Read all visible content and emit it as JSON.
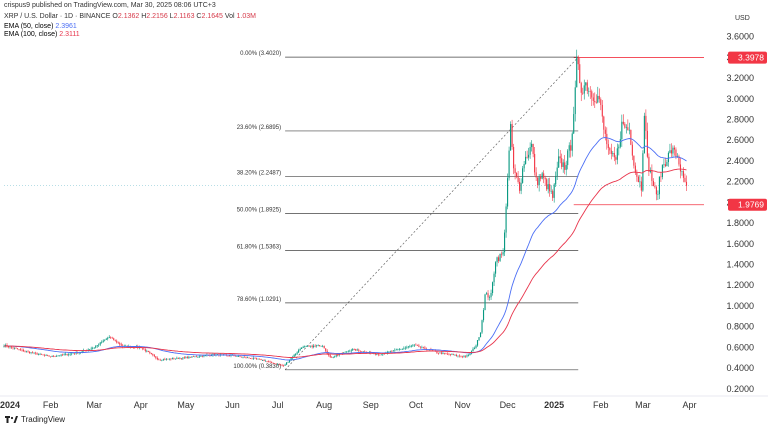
{
  "publisher_line": "crispus9 published on TradingView.com, Mar 30, 2025 08:06 UTC+3",
  "symbol": {
    "title": "XRP / U.S. Dollar · 1D · BINANCE",
    "ohlc": {
      "o_label": "O",
      "o": "2.1362",
      "h_label": "H",
      "h": "2.2156",
      "l_label": "L",
      "l": "2.1163",
      "c_label": "C",
      "c": "2.1645"
    },
    "vol_label": "Vol",
    "vol": "1.03M"
  },
  "indicators": [
    {
      "label": "EMA (50, close)",
      "value": "2.3961",
      "color": "#4c6ff5"
    },
    {
      "label": "EMA (100, close)",
      "value": "2.3111",
      "color": "#e8354c"
    }
  ],
  "currency": "USD",
  "price_tags": [
    {
      "value": "3.3978",
      "color": "#f23645"
    },
    {
      "value": "1.9769",
      "color": "#f23645"
    }
  ],
  "footer": {
    "brand": "TradingView"
  },
  "chart_data": {
    "type": "candlestick",
    "y_ticks": [
      0.2,
      0.4,
      0.6,
      0.8,
      1.0,
      1.2,
      1.4,
      1.6,
      1.8,
      2.0,
      2.2,
      2.4,
      2.6,
      2.8,
      3.0,
      3.2,
      3.4,
      3.6
    ],
    "y_tick_labels": [
      "0.2000",
      "0.4000",
      "0.6000",
      "0.8000",
      "1.0000",
      "1.2000",
      "1.4000",
      "1.6000",
      "1.8000",
      "2.0000",
      "2.2000",
      "2.4000",
      "2.6000",
      "2.8000",
      "3.0000",
      "3.2000",
      "3.4000",
      "3.6000"
    ],
    "x_labels": [
      "2024",
      "Feb",
      "Mar",
      "Apr",
      "May",
      "Jun",
      "Jul",
      "Aug",
      "Sep",
      "Oct",
      "Nov",
      "Dec",
      "2025",
      "Feb",
      "Mar",
      "Apr"
    ],
    "ylim": [
      0.13,
      3.78
    ],
    "grid": false,
    "fib_levels": [
      {
        "label": "0.00% (3.4020)",
        "price": 3.402
      },
      {
        "label": "23.60% (2.6895)",
        "price": 2.6895
      },
      {
        "label": "38.20% (2.2487)",
        "price": 2.2487
      },
      {
        "label": "50.00% (1.8925)",
        "price": 1.8925
      },
      {
        "label": "61.80% (1.5363)",
        "price": 1.5363
      },
      {
        "label": "78.60% (1.0291)",
        "price": 1.0291
      },
      {
        "label": "100.00% (0.3830)",
        "price": 0.383
      }
    ],
    "fib_range_dates": [
      "2024-07-06",
      "2025-01-17"
    ],
    "horizontal_lines": [
      3.3978,
      1.9769
    ],
    "price_line": 2.1645,
    "keypoints_close": [
      [
        "2024-01-01",
        0.62
      ],
      [
        "2024-01-15",
        0.56
      ],
      [
        "2024-02-01",
        0.51
      ],
      [
        "2024-02-20",
        0.55
      ],
      [
        "2024-03-01",
        0.6
      ],
      [
        "2024-03-11",
        0.7
      ],
      [
        "2024-03-20",
        0.61
      ],
      [
        "2024-04-01",
        0.6
      ],
      [
        "2024-04-13",
        0.48
      ],
      [
        "2024-05-01",
        0.5
      ],
      [
        "2024-05-20",
        0.53
      ],
      [
        "2024-06-01",
        0.52
      ],
      [
        "2024-06-20",
        0.48
      ],
      [
        "2024-07-05",
        0.42
      ],
      [
        "2024-07-17",
        0.6
      ],
      [
        "2024-07-31",
        0.62
      ],
      [
        "2024-08-05",
        0.5
      ],
      [
        "2024-08-20",
        0.58
      ],
      [
        "2024-09-06",
        0.53
      ],
      [
        "2024-09-20",
        0.58
      ],
      [
        "2024-09-30",
        0.62
      ],
      [
        "2024-10-15",
        0.55
      ],
      [
        "2024-11-01",
        0.51
      ],
      [
        "2024-11-05",
        0.52
      ],
      [
        "2024-11-10",
        0.62
      ],
      [
        "2024-11-13",
        0.75
      ],
      [
        "2024-11-16",
        1.1
      ],
      [
        "2024-11-20",
        1.1
      ],
      [
        "2024-11-23",
        1.45
      ],
      [
        "2024-11-28",
        1.5
      ],
      [
        "2024-12-02",
        2.45
      ],
      [
        "2024-12-03",
        2.75
      ],
      [
        "2024-12-05",
        2.3
      ],
      [
        "2024-12-09",
        2.15
      ],
      [
        "2024-12-12",
        2.4
      ],
      [
        "2024-12-17",
        2.55
      ],
      [
        "2024-12-20",
        2.2
      ],
      [
        "2024-12-24",
        2.25
      ],
      [
        "2024-12-31",
        2.05
      ],
      [
        "2025-01-04",
        2.4
      ],
      [
        "2025-01-08",
        2.35
      ],
      [
        "2025-01-12",
        2.55
      ],
      [
        "2025-01-15",
        3.05
      ],
      [
        "2025-01-16",
        3.35
      ],
      [
        "2025-01-19",
        3.1
      ],
      [
        "2025-01-22",
        3.15
      ],
      [
        "2025-01-26",
        3.05
      ],
      [
        "2025-01-31",
        3.0
      ],
      [
        "2025-02-03",
        2.7
      ],
      [
        "2025-02-07",
        2.45
      ],
      [
        "2025-02-11",
        2.4
      ],
      [
        "2025-02-15",
        2.75
      ],
      [
        "2025-02-20",
        2.7
      ],
      [
        "2025-02-24",
        2.3
      ],
      [
        "2025-02-28",
        2.15
      ],
      [
        "2025-03-02",
        2.9
      ],
      [
        "2025-03-04",
        2.4
      ],
      [
        "2025-03-10",
        2.05
      ],
      [
        "2025-03-14",
        2.35
      ],
      [
        "2025-03-20",
        2.5
      ],
      [
        "2025-03-24",
        2.45
      ],
      [
        "2025-03-28",
        2.2
      ],
      [
        "2025-03-30",
        2.16
      ]
    ]
  }
}
